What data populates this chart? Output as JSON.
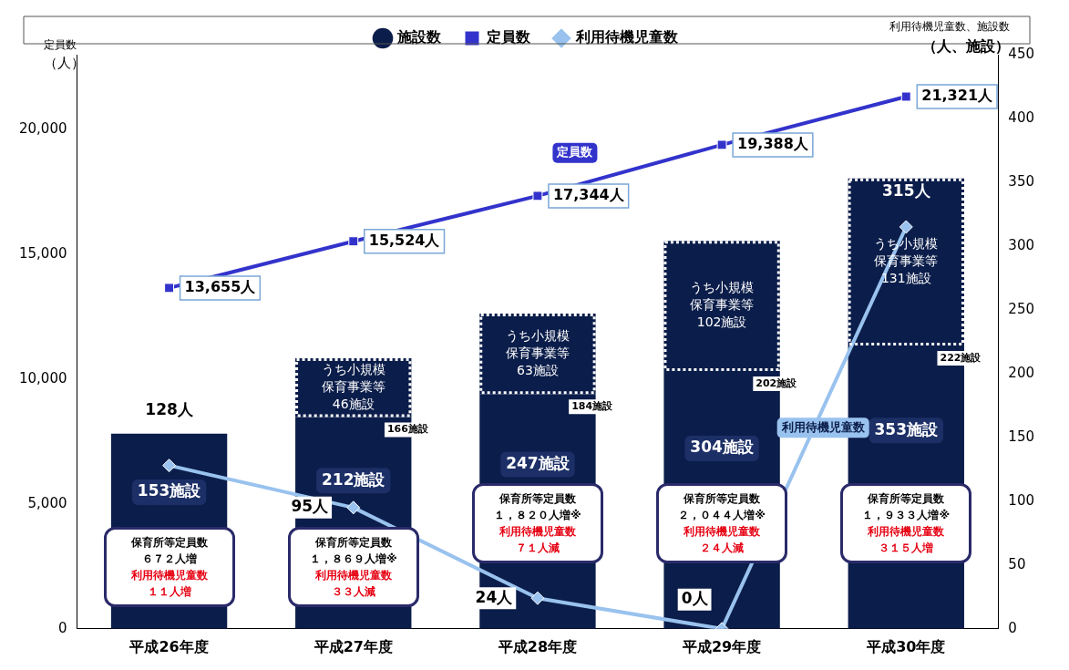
{
  "chart_data": {
    "type": "bar",
    "categories": [
      "平成26年度",
      "平成27年度",
      "平成28年度",
      "平成29年度",
      "平成30年度"
    ],
    "ylabel": "定員数（人）",
    "y2label": "利用待機児童数、施設数（人、施設）",
    "ylim": [
      0,
      23000
    ],
    "yticks": [
      0,
      {
        "value": 5000,
        "label": "5,000"
      },
      {
        "value": 10000,
        "label": "10,000"
      },
      {
        "value": 15000,
        "label": "15,000"
      },
      {
        "value": 20000,
        "label": "20,000"
      }
    ],
    "y2lim": [
      0,
      450
    ],
    "y2ticks": [
      0,
      50,
      100,
      150,
      200,
      250,
      300,
      350,
      400,
      450
    ],
    "stacked": true,
    "legend": "top",
    "grid": false,
    "series": [
      {
        "name": "施設数",
        "axis": "y2",
        "color": "#0b1d4a",
        "values": [
          153,
          166,
          184,
          202,
          222
        ],
        "value_labels": [
          null,
          "166施設",
          "184施設",
          "202施設",
          "222施設"
        ]
      },
      {
        "axis": "y2",
        "color": "#0b1d4a",
        "line_style": "dotted",
        "values": [
          null,
          46,
          63,
          102,
          131
        ],
        "value_labels": [
          null,
          "うち小規模保育事業等46施設",
          "うち小規模保育事業等63施設",
          "うち小規模保育事業等102施設",
          "うち小規模保育事業等131施設"
        ]
      },
      {
        "name": "定員数",
        "type": "line",
        "axis": "y",
        "color": "#3333cc",
        "marker": "square",
        "values": [
          13655,
          15524,
          17344,
          19388,
          21321
        ],
        "value_labels": [
          "13,655人",
          "15,524人",
          "17,344人",
          "19,388人",
          "21,321人"
        ]
      },
      {
        "name": "利用待機児童数",
        "type": "line",
        "axis": "y2",
        "color": "#99c2ee",
        "marker": "diamond",
        "values": [
          128,
          95,
          24,
          0,
          315
        ],
        "value_labels": [
          "128人",
          "95人",
          "24人",
          "0人",
          "315人"
        ]
      }
    ],
    "totals": [
      "153施設",
      "212施設",
      "247施設",
      "304施設",
      "353施設"
    ],
    "annotations": [
      "保育所等定員数６７２人増",
      "利用待機児童数１１人増",
      "保育所等定員数１，８６９人増※",
      "利用待機児童数３３人減",
      "保育所等定員数１，８２０人増※",
      "利用待機児童数７１人減",
      "保育所等定員数２，０４４人増※",
      "利用待機児童数２４人減",
      "保育所等定員数１，９３３人増※",
      "利用待機児童数３１５人増"
    ]
  }
}
